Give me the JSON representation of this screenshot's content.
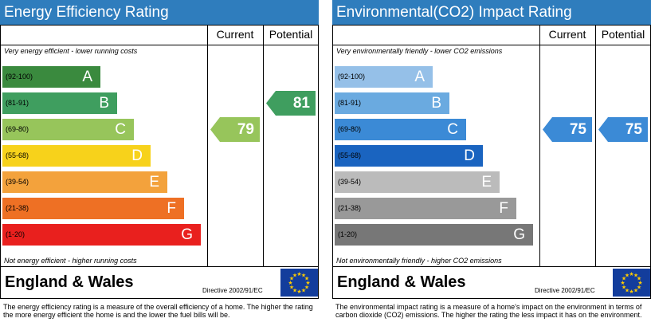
{
  "colors": {
    "title_bar": "#2f7dbd",
    "energy_bands": [
      "#3a8a3e",
      "#3f9e5f",
      "#97c55b",
      "#f7d21b",
      "#f3a23c",
      "#ee7024",
      "#e9201e"
    ],
    "environmental_bands": [
      "#95c0e8",
      "#6aaae0",
      "#3b8ad6",
      "#1a64c0",
      "#bbbbbb",
      "#999999",
      "#777777"
    ],
    "eu_flag": "#133d9c",
    "eu_stars": "#ffcc00"
  },
  "energy": {
    "title": "Energy Efficiency Rating",
    "col_current": "Current",
    "col_potential": "Potential",
    "top_caption": "Very energy efficient - lower running costs",
    "bottom_caption": "Not energy efficient - higher running costs",
    "bands": [
      {
        "range": "(92-100)",
        "letter": "A"
      },
      {
        "range": "(81-91)",
        "letter": "B"
      },
      {
        "range": "(69-80)",
        "letter": "C"
      },
      {
        "range": "(55-68)",
        "letter": "D"
      },
      {
        "range": "(39-54)",
        "letter": "E"
      },
      {
        "range": "(21-38)",
        "letter": "F"
      },
      {
        "range": "(1-20)",
        "letter": "G"
      }
    ],
    "current": {
      "value": "79",
      "band": "C",
      "color": "#97c55b"
    },
    "potential": {
      "value": "81",
      "band": "B",
      "color": "#3f9e5f"
    },
    "region": "England & Wales",
    "directive": "Directive 2002/91/EC",
    "description": "The energy efficiency rating is a measure of the overall efficiency of a home. The higher the rating the more energy efficient the home is and the lower the fuel bills will be."
  },
  "environmental": {
    "title": "Environmental(CO2) Impact Rating",
    "col_current": "Current",
    "col_potential": "Potential",
    "top_caption": "Very environmentally friendly - lower CO2 emissions",
    "bottom_caption": "Not environmentally friendly - higher CO2 emissions",
    "bands": [
      {
        "range": "(92-100)",
        "letter": "A"
      },
      {
        "range": "(81-91)",
        "letter": "B"
      },
      {
        "range": "(69-80)",
        "letter": "C"
      },
      {
        "range": "(55-68)",
        "letter": "D"
      },
      {
        "range": "(39-54)",
        "letter": "E"
      },
      {
        "range": "(21-38)",
        "letter": "F"
      },
      {
        "range": "(1-20)",
        "letter": "G"
      }
    ],
    "current": {
      "value": "75",
      "band": "C",
      "color": "#3b8ad6"
    },
    "potential": {
      "value": "75",
      "band": "C",
      "color": "#3b8ad6"
    },
    "region": "England & Wales",
    "directive": "Directive 2002/91/EC",
    "description": "The environmental impact rating is a measure of a home's impact on the environment in terms of carbon dioxide (CO2) emissions. The higher the rating the less impact it has on the environment."
  }
}
